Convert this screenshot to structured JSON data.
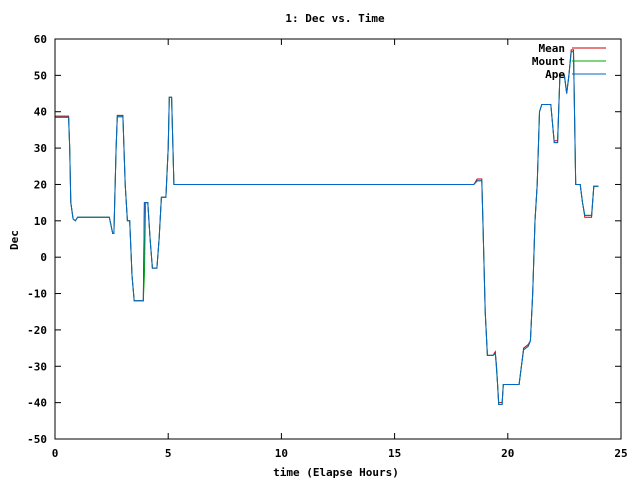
{
  "chart_data": {
    "type": "line",
    "title": "1: Dec vs. Time",
    "xlabel": "time (Elapse Hours)",
    "ylabel": "Dec",
    "xlim": [
      0,
      25
    ],
    "ylim": [
      -50,
      60
    ],
    "xticks": [
      0,
      5,
      10,
      15,
      20,
      25
    ],
    "yticks": [
      -50,
      -40,
      -30,
      -20,
      -10,
      0,
      10,
      20,
      30,
      40,
      50,
      60
    ],
    "grid": false,
    "legend": "top-right",
    "series": [
      {
        "name": "Mean",
        "color": "#cc0000",
        "points": [
          [
            0,
            38.8
          ],
          [
            0.6,
            38.8
          ],
          [
            0.65,
            30
          ],
          [
            0.7,
            15
          ],
          [
            0.8,
            10.5
          ],
          [
            0.9,
            10
          ],
          [
            1.0,
            11
          ],
          [
            2.4,
            11
          ],
          [
            2.5,
            8
          ],
          [
            2.55,
            6.5
          ],
          [
            2.6,
            6.5
          ],
          [
            2.7,
            30
          ],
          [
            2.75,
            39
          ],
          [
            3.0,
            39
          ],
          [
            3.1,
            20
          ],
          [
            3.2,
            10
          ],
          [
            3.3,
            10
          ],
          [
            3.4,
            -5
          ],
          [
            3.5,
            -12
          ],
          [
            3.9,
            -12
          ],
          [
            3.95,
            15
          ],
          [
            4.1,
            15
          ],
          [
            4.2,
            5
          ],
          [
            4.3,
            -3
          ],
          [
            4.5,
            -3
          ],
          [
            4.6,
            5
          ],
          [
            4.7,
            16.5
          ],
          [
            4.9,
            16.5
          ],
          [
            5.0,
            30
          ],
          [
            5.05,
            44
          ],
          [
            5.15,
            44
          ],
          [
            5.25,
            20
          ],
          [
            18.5,
            20
          ],
          [
            18.65,
            21.5
          ],
          [
            18.85,
            21.5
          ],
          [
            18.9,
            10
          ],
          [
            19.0,
            -15
          ],
          [
            19.1,
            -27
          ],
          [
            19.35,
            -27
          ],
          [
            19.45,
            -26
          ],
          [
            19.5,
            -30
          ],
          [
            19.6,
            -40
          ],
          [
            19.75,
            -40
          ],
          [
            19.8,
            -35
          ],
          [
            20.5,
            -35
          ],
          [
            20.6,
            -30
          ],
          [
            20.7,
            -25
          ],
          [
            20.9,
            -24
          ],
          [
            21.0,
            -23
          ],
          [
            21.1,
            -10
          ],
          [
            21.2,
            10
          ],
          [
            21.3,
            20
          ],
          [
            21.4,
            40
          ],
          [
            21.5,
            42
          ],
          [
            21.9,
            42
          ],
          [
            22.0,
            35
          ],
          [
            22.05,
            32
          ],
          [
            22.2,
            32
          ],
          [
            22.3,
            50
          ],
          [
            22.5,
            50
          ],
          [
            22.6,
            45
          ],
          [
            22.7,
            50
          ],
          [
            22.8,
            57
          ],
          [
            22.9,
            57
          ],
          [
            23.0,
            20
          ],
          [
            23.2,
            20
          ],
          [
            23.3,
            15
          ],
          [
            23.4,
            11
          ],
          [
            23.7,
            11
          ],
          [
            23.8,
            19.5
          ],
          [
            24.0,
            19.5
          ]
        ]
      },
      {
        "name": "Mount",
        "color": "#00aa00",
        "points": [
          [
            0,
            38.5
          ],
          [
            0.6,
            38.5
          ],
          [
            0.65,
            30
          ],
          [
            0.7,
            15
          ],
          [
            0.8,
            10.5
          ],
          [
            0.9,
            10
          ],
          [
            1.0,
            11
          ],
          [
            2.4,
            11
          ],
          [
            2.5,
            8
          ],
          [
            2.55,
            6.5
          ],
          [
            2.6,
            6.5
          ],
          [
            2.7,
            30
          ],
          [
            2.75,
            38.6
          ],
          [
            3.0,
            38.6
          ],
          [
            3.1,
            20
          ],
          [
            3.2,
            10
          ],
          [
            3.3,
            10
          ],
          [
            3.4,
            -5
          ],
          [
            3.5,
            -12
          ],
          [
            3.9,
            -12
          ],
          [
            3.95,
            -5
          ],
          [
            4.0,
            15
          ],
          [
            4.1,
            15
          ],
          [
            4.2,
            5
          ],
          [
            4.3,
            -3
          ],
          [
            4.5,
            -3
          ],
          [
            4.6,
            5
          ],
          [
            4.7,
            16.5
          ],
          [
            4.9,
            16.5
          ],
          [
            5.0,
            30
          ],
          [
            5.05,
            44
          ],
          [
            5.15,
            44
          ],
          [
            5.25,
            20
          ],
          [
            18.5,
            20
          ],
          [
            18.65,
            21
          ],
          [
            18.85,
            21
          ],
          [
            18.9,
            10
          ],
          [
            19.0,
            -15
          ],
          [
            19.1,
            -27
          ],
          [
            19.35,
            -27
          ],
          [
            19.45,
            -26.5
          ],
          [
            19.55,
            -35
          ],
          [
            19.6,
            -40.5
          ],
          [
            19.75,
            -40.5
          ],
          [
            19.8,
            -35
          ],
          [
            20.5,
            -35
          ],
          [
            20.6,
            -30
          ],
          [
            20.7,
            -25.5
          ],
          [
            20.9,
            -24.5
          ],
          [
            21.0,
            -23
          ],
          [
            21.1,
            -10
          ],
          [
            21.2,
            10
          ],
          [
            21.3,
            20
          ],
          [
            21.4,
            40
          ],
          [
            21.5,
            42
          ],
          [
            21.9,
            42
          ],
          [
            22.0,
            35
          ],
          [
            22.05,
            31.5
          ],
          [
            22.2,
            31.5
          ],
          [
            22.3,
            50
          ],
          [
            22.5,
            50
          ],
          [
            22.6,
            45
          ],
          [
            22.7,
            50
          ],
          [
            22.8,
            56.5
          ],
          [
            22.9,
            56.5
          ],
          [
            23.0,
            20
          ],
          [
            23.2,
            20
          ],
          [
            23.3,
            15
          ],
          [
            23.4,
            11.5
          ],
          [
            23.7,
            11.5
          ],
          [
            23.8,
            19.5
          ],
          [
            24.0,
            19.5
          ]
        ]
      },
      {
        "name": "Ape",
        "color": "#0066cc",
        "points": [
          [
            0,
            38.5
          ],
          [
            0.6,
            38.5
          ],
          [
            0.65,
            30
          ],
          [
            0.7,
            15
          ],
          [
            0.8,
            10.5
          ],
          [
            0.9,
            10
          ],
          [
            1.0,
            11
          ],
          [
            2.4,
            11
          ],
          [
            2.5,
            8
          ],
          [
            2.55,
            6.5
          ],
          [
            2.6,
            6.5
          ],
          [
            2.7,
            30
          ],
          [
            2.75,
            38.6
          ],
          [
            3.0,
            38.6
          ],
          [
            3.1,
            20
          ],
          [
            3.2,
            10
          ],
          [
            3.3,
            10
          ],
          [
            3.4,
            -5
          ],
          [
            3.5,
            -12
          ],
          [
            3.9,
            -12
          ],
          [
            3.95,
            15
          ],
          [
            4.1,
            15
          ],
          [
            4.2,
            5
          ],
          [
            4.3,
            -3
          ],
          [
            4.5,
            -3
          ],
          [
            4.6,
            5
          ],
          [
            4.7,
            16.5
          ],
          [
            4.9,
            16.5
          ],
          [
            5.0,
            30
          ],
          [
            5.05,
            44
          ],
          [
            5.15,
            44
          ],
          [
            5.25,
            20
          ],
          [
            18.5,
            20
          ],
          [
            18.65,
            21
          ],
          [
            18.85,
            21
          ],
          [
            18.9,
            10
          ],
          [
            19.0,
            -15
          ],
          [
            19.1,
            -27
          ],
          [
            19.35,
            -27
          ],
          [
            19.45,
            -26.5
          ],
          [
            19.5,
            -30
          ],
          [
            19.6,
            -40.5
          ],
          [
            19.75,
            -40.5
          ],
          [
            19.8,
            -35
          ],
          [
            20.5,
            -35
          ],
          [
            20.6,
            -30
          ],
          [
            20.7,
            -25.5
          ],
          [
            20.9,
            -24.5
          ],
          [
            21.0,
            -23
          ],
          [
            21.1,
            -10
          ],
          [
            21.2,
            10
          ],
          [
            21.3,
            20
          ],
          [
            21.4,
            40
          ],
          [
            21.5,
            42
          ],
          [
            21.9,
            42
          ],
          [
            22.0,
            35
          ],
          [
            22.05,
            31.5
          ],
          [
            22.2,
            31.5
          ],
          [
            22.3,
            50
          ],
          [
            22.5,
            50
          ],
          [
            22.6,
            45
          ],
          [
            22.7,
            50
          ],
          [
            22.8,
            56.5
          ],
          [
            22.9,
            56.5
          ],
          [
            23.0,
            20
          ],
          [
            23.2,
            20
          ],
          [
            23.3,
            15
          ],
          [
            23.4,
            11.5
          ],
          [
            23.7,
            11.5
          ],
          [
            23.8,
            19.5
          ],
          [
            24.0,
            19.5
          ]
        ]
      }
    ]
  }
}
